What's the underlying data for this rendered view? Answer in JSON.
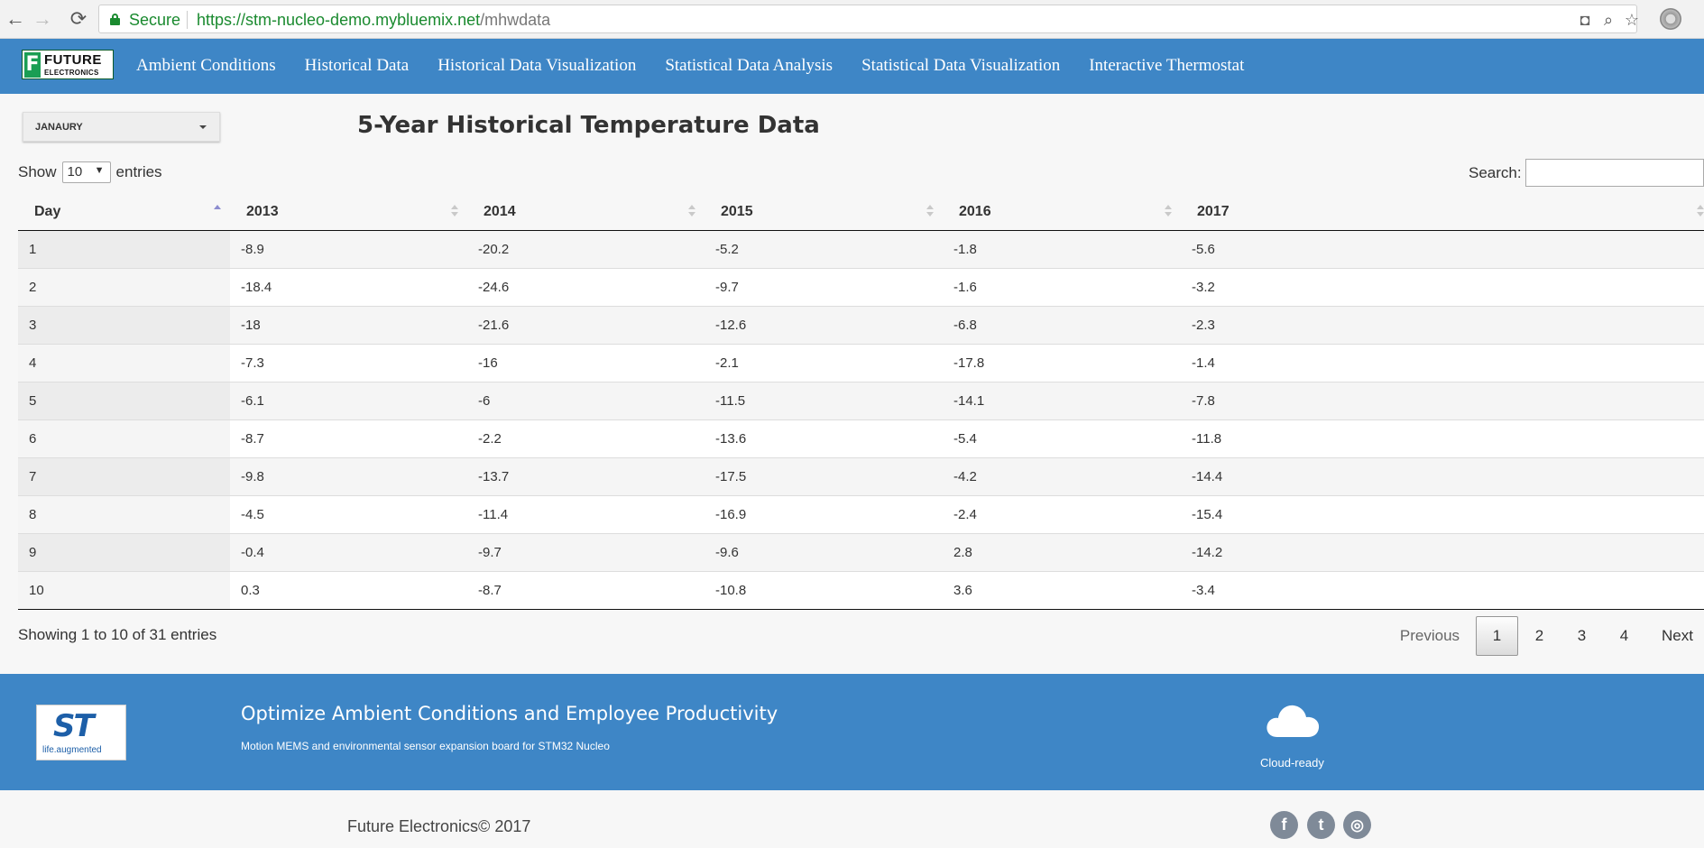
{
  "browser": {
    "secure_label": "Secure",
    "url_host": "https://stm-nucleo-demo.mybluemix.net",
    "url_path": "/mhwdata"
  },
  "brand": {
    "line1": "FUTURE",
    "line2": "ELECTRONICS"
  },
  "nav": {
    "items": [
      "Ambient Conditions",
      "Historical Data",
      "Historical Data Visualization",
      "Statistical Data Analysis",
      "Statistical Data Visualization",
      "Interactive Thermostat"
    ]
  },
  "month_select": {
    "value": "JANAURY"
  },
  "page_title": "5-Year Historical Temperature Data",
  "length_control": {
    "prefix": "Show",
    "value": "10",
    "suffix": "entries"
  },
  "search": {
    "label": "Search:",
    "value": ""
  },
  "table": {
    "columns": [
      "Day",
      "2013",
      "2014",
      "2015",
      "2016",
      "2017"
    ],
    "sorted_column": "Day",
    "rows": [
      [
        "1",
        "-8.9",
        "-20.2",
        "-5.2",
        "-1.8",
        "-5.6"
      ],
      [
        "2",
        "-18.4",
        "-24.6",
        "-9.7",
        "-1.6",
        "-3.2"
      ],
      [
        "3",
        "-18",
        "-21.6",
        "-12.6",
        "-6.8",
        "-2.3"
      ],
      [
        "4",
        "-7.3",
        "-16",
        "-2.1",
        "-17.8",
        "-1.4"
      ],
      [
        "5",
        "-6.1",
        "-6",
        "-11.5",
        "-14.1",
        "-7.8"
      ],
      [
        "6",
        "-8.7",
        "-2.2",
        "-13.6",
        "-5.4",
        "-11.8"
      ],
      [
        "7",
        "-9.8",
        "-13.7",
        "-17.5",
        "-4.2",
        "-14.4"
      ],
      [
        "8",
        "-4.5",
        "-11.4",
        "-16.9",
        "-2.4",
        "-15.4"
      ],
      [
        "9",
        "-0.4",
        "-9.7",
        "-9.6",
        "2.8",
        "-14.2"
      ],
      [
        "10",
        "0.3",
        "-8.7",
        "-10.8",
        "3.6",
        "-3.4"
      ]
    ]
  },
  "table_info": "Showing 1 to 10 of 31 entries",
  "pagination": {
    "previous": "Previous",
    "pages": [
      "1",
      "2",
      "3",
      "4"
    ],
    "current": "1",
    "next": "Next"
  },
  "footer": {
    "logo_text": "ST",
    "logo_tagline": "life.augmented",
    "title": "Optimize Ambient Conditions and Employee Productivity",
    "subtitle": "Motion MEMS and environmental sensor expansion board for STM32 Nucleo",
    "cloud_label": "Cloud-ready",
    "cloud_icon": "cloud-icon"
  },
  "copyright": "Future Electronics© 2017",
  "social": {
    "facebook_glyph": "f",
    "twitter_glyph": "t",
    "instagram_glyph": "◎"
  },
  "colors": {
    "nav_bg": "#3e86c6",
    "secure_green": "#1a8a2f",
    "brand_green": "#1a9e54"
  }
}
